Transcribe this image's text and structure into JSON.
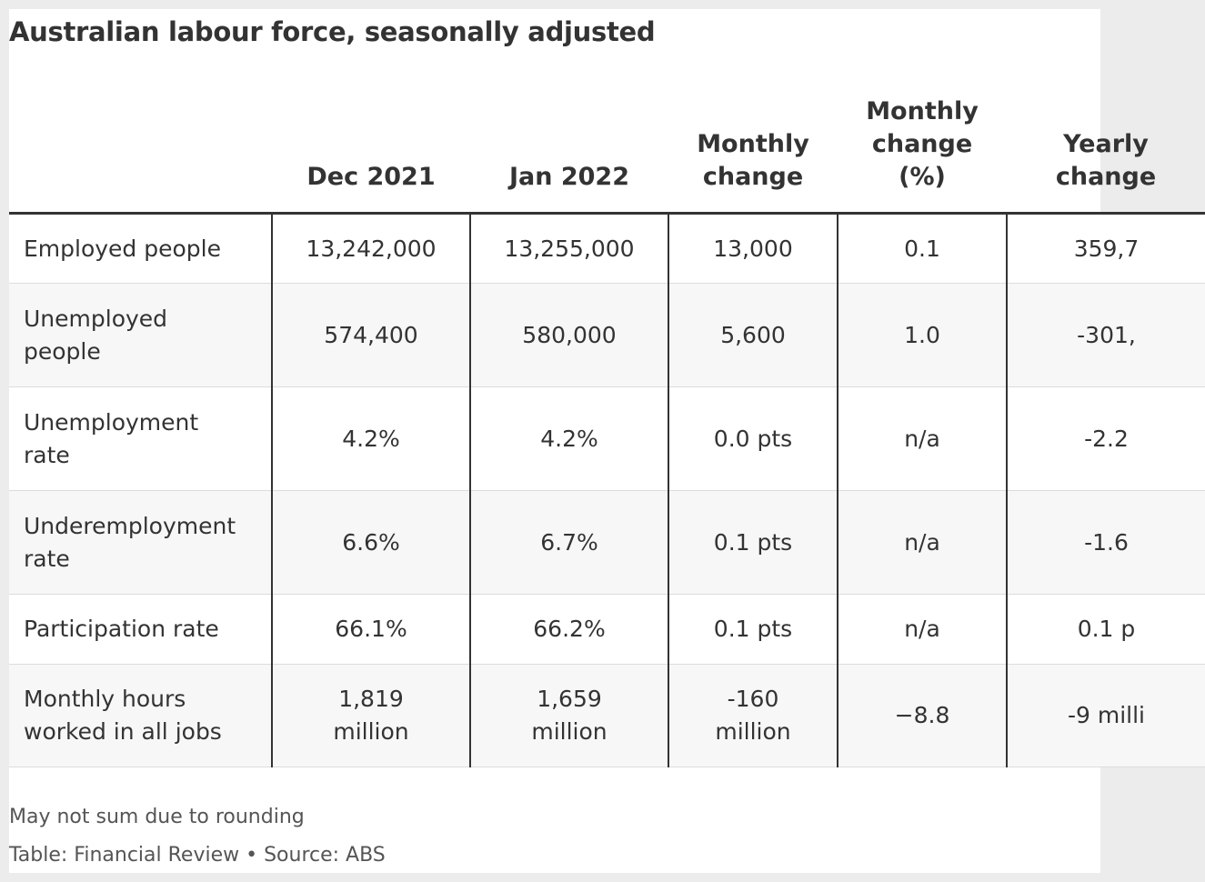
{
  "title": "Australian labour force, seasonally adjusted",
  "table": {
    "headers": [
      "",
      "Dec 2021",
      "Jan 2022",
      "Monthly change",
      "Monthly change (%)",
      "Yearly change"
    ],
    "rows": [
      [
        "Employed people",
        "13,242,000",
        "13,255,000",
        "13,000",
        "0.1",
        "359,7"
      ],
      [
        "Unemployed people",
        "574,400",
        "580,000",
        "5,600",
        "1.0",
        "-301,"
      ],
      [
        "Unemployment rate",
        "4.2%",
        "4.2%",
        "0.0 pts",
        "n/a",
        "-2.2"
      ],
      [
        "Underemployment rate",
        "6.6%",
        "6.7%",
        "0.1 pts",
        "n/a",
        "-1.6"
      ],
      [
        "Participation rate",
        "66.1%",
        "66.2%",
        "0.1 pts",
        "n/a",
        "0.1 p"
      ],
      [
        "Monthly hours worked in all jobs",
        "1,819 million",
        "1,659 million",
        "-160 million",
        "−8.8",
        "-9 milli"
      ]
    ]
  },
  "footnote": "May not sum due to rounding",
  "source": "Table: Financial Review • Source: ABS"
}
